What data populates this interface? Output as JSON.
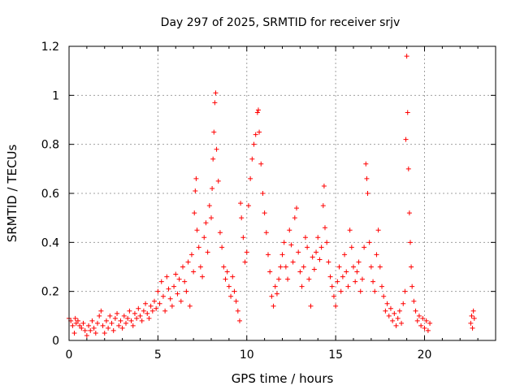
{
  "chart_data": {
    "type": "scatter",
    "title": "Day 297 of 2025, SRMTID for receiver srjv",
    "xlabel": "GPS time / hours",
    "ylabel": "SRMTID / TECUs",
    "xlim": [
      0,
      24
    ],
    "ylim": [
      0,
      1.2
    ],
    "xticks": [
      0,
      5,
      10,
      15,
      20
    ],
    "yticks": [
      0,
      0.2,
      0.4,
      0.6,
      0.8,
      1,
      1.2
    ],
    "xtick_labels": [
      "0",
      "5",
      "10",
      "15",
      "20"
    ],
    "ytick_labels": [
      "0",
      "0.2",
      "0.4",
      "0.6",
      "0.8",
      "1",
      "1.2"
    ],
    "grid": true,
    "marker": "+",
    "color": "#ff0000",
    "series": [
      {
        "name": "SRMTID",
        "points": [
          [
            0.0,
            0.09
          ],
          [
            0.1,
            0.08
          ],
          [
            0.2,
            0.06
          ],
          [
            0.3,
            0.03
          ],
          [
            0.35,
            0.09
          ],
          [
            0.4,
            0.07
          ],
          [
            0.5,
            0.08
          ],
          [
            0.6,
            0.06
          ],
          [
            0.7,
            0.05
          ],
          [
            0.8,
            0.07
          ],
          [
            0.9,
            0.04
          ],
          [
            1.0,
            0.02
          ],
          [
            1.1,
            0.06
          ],
          [
            1.2,
            0.04
          ],
          [
            1.3,
            0.08
          ],
          [
            1.4,
            0.05
          ],
          [
            1.5,
            0.03
          ],
          [
            1.6,
            0.07
          ],
          [
            1.7,
            0.1
          ],
          [
            1.8,
            0.12
          ],
          [
            1.9,
            0.06
          ],
          [
            2.0,
            0.03
          ],
          [
            2.1,
            0.08
          ],
          [
            2.2,
            0.05
          ],
          [
            2.3,
            0.1
          ],
          [
            2.4,
            0.07
          ],
          [
            2.5,
            0.04
          ],
          [
            2.6,
            0.09
          ],
          [
            2.7,
            0.11
          ],
          [
            2.8,
            0.06
          ],
          [
            2.9,
            0.08
          ],
          [
            3.0,
            0.05
          ],
          [
            3.1,
            0.1
          ],
          [
            3.2,
            0.07
          ],
          [
            3.3,
            0.09
          ],
          [
            3.4,
            0.12
          ],
          [
            3.5,
            0.08
          ],
          [
            3.6,
            0.06
          ],
          [
            3.7,
            0.11
          ],
          [
            3.8,
            0.09
          ],
          [
            3.9,
            0.13
          ],
          [
            4.0,
            0.1
          ],
          [
            4.1,
            0.08
          ],
          [
            4.2,
            0.12
          ],
          [
            4.3,
            0.15
          ],
          [
            4.4,
            0.11
          ],
          [
            4.5,
            0.09
          ],
          [
            4.6,
            0.14
          ],
          [
            4.7,
            0.12
          ],
          [
            4.8,
            0.16
          ],
          [
            4.9,
            0.13
          ],
          [
            5.0,
            0.2
          ],
          [
            5.1,
            0.15
          ],
          [
            5.2,
            0.24
          ],
          [
            5.3,
            0.18
          ],
          [
            5.4,
            0.12
          ],
          [
            5.5,
            0.26
          ],
          [
            5.6,
            0.21
          ],
          [
            5.7,
            0.17
          ],
          [
            5.8,
            0.14
          ],
          [
            5.9,
            0.22
          ],
          [
            6.0,
            0.27
          ],
          [
            6.1,
            0.19
          ],
          [
            6.2,
            0.25
          ],
          [
            6.3,
            0.16
          ],
          [
            6.4,
            0.3
          ],
          [
            6.5,
            0.24
          ],
          [
            6.6,
            0.2
          ],
          [
            6.7,
            0.32
          ],
          [
            6.8,
            0.14
          ],
          [
            6.9,
            0.35
          ],
          [
            7.0,
            0.28
          ],
          [
            7.05,
            0.52
          ],
          [
            7.1,
            0.61
          ],
          [
            7.15,
            0.66
          ],
          [
            7.2,
            0.45
          ],
          [
            7.3,
            0.38
          ],
          [
            7.4,
            0.3
          ],
          [
            7.5,
            0.26
          ],
          [
            7.6,
            0.42
          ],
          [
            7.7,
            0.48
          ],
          [
            7.8,
            0.36
          ],
          [
            7.9,
            0.55
          ],
          [
            8.0,
            0.5
          ],
          [
            8.05,
            0.62
          ],
          [
            8.1,
            0.74
          ],
          [
            8.15,
            0.85
          ],
          [
            8.2,
            0.97
          ],
          [
            8.25,
            1.01
          ],
          [
            8.3,
            0.78
          ],
          [
            8.4,
            0.65
          ],
          [
            8.5,
            0.44
          ],
          [
            8.6,
            0.38
          ],
          [
            8.7,
            0.3
          ],
          [
            8.8,
            0.25
          ],
          [
            8.9,
            0.28
          ],
          [
            9.0,
            0.22
          ],
          [
            9.1,
            0.18
          ],
          [
            9.2,
            0.26
          ],
          [
            9.3,
            0.2
          ],
          [
            9.4,
            0.16
          ],
          [
            9.5,
            0.12
          ],
          [
            9.6,
            0.08
          ],
          [
            9.65,
            0.56
          ],
          [
            9.7,
            0.5
          ],
          [
            9.8,
            0.42
          ],
          [
            9.9,
            0.32
          ],
          [
            10.0,
            0.36
          ],
          [
            10.1,
            0.55
          ],
          [
            10.2,
            0.66
          ],
          [
            10.3,
            0.74
          ],
          [
            10.4,
            0.8
          ],
          [
            10.5,
            0.84
          ],
          [
            10.6,
            0.93
          ],
          [
            10.65,
            0.94
          ],
          [
            10.7,
            0.85
          ],
          [
            10.8,
            0.72
          ],
          [
            10.9,
            0.6
          ],
          [
            11.0,
            0.52
          ],
          [
            11.1,
            0.44
          ],
          [
            11.2,
            0.35
          ],
          [
            11.3,
            0.28
          ],
          [
            11.4,
            0.18
          ],
          [
            11.5,
            0.14
          ],
          [
            11.6,
            0.22
          ],
          [
            11.7,
            0.19
          ],
          [
            11.8,
            0.25
          ],
          [
            11.9,
            0.3
          ],
          [
            12.0,
            0.35
          ],
          [
            12.1,
            0.4
          ],
          [
            12.2,
            0.3
          ],
          [
            12.3,
            0.25
          ],
          [
            12.4,
            0.45
          ],
          [
            12.5,
            0.39
          ],
          [
            12.6,
            0.32
          ],
          [
            12.7,
            0.5
          ],
          [
            12.8,
            0.54
          ],
          [
            12.9,
            0.36
          ],
          [
            13.0,
            0.28
          ],
          [
            13.1,
            0.22
          ],
          [
            13.2,
            0.3
          ],
          [
            13.3,
            0.42
          ],
          [
            13.4,
            0.38
          ],
          [
            13.5,
            0.25
          ],
          [
            13.6,
            0.14
          ],
          [
            13.7,
            0.34
          ],
          [
            13.8,
            0.29
          ],
          [
            13.9,
            0.36
          ],
          [
            14.0,
            0.42
          ],
          [
            14.1,
            0.33
          ],
          [
            14.2,
            0.38
          ],
          [
            14.3,
            0.55
          ],
          [
            14.35,
            0.63
          ],
          [
            14.4,
            0.46
          ],
          [
            14.5,
            0.4
          ],
          [
            14.6,
            0.32
          ],
          [
            14.7,
            0.26
          ],
          [
            14.8,
            0.22
          ],
          [
            14.9,
            0.18
          ],
          [
            15.0,
            0.14
          ],
          [
            15.1,
            0.24
          ],
          [
            15.2,
            0.3
          ],
          [
            15.3,
            0.2
          ],
          [
            15.4,
            0.26
          ],
          [
            15.5,
            0.35
          ],
          [
            15.6,
            0.28
          ],
          [
            15.7,
            0.22
          ],
          [
            15.8,
            0.45
          ],
          [
            15.9,
            0.38
          ],
          [
            16.0,
            0.3
          ],
          [
            16.1,
            0.24
          ],
          [
            16.2,
            0.28
          ],
          [
            16.3,
            0.32
          ],
          [
            16.4,
            0.2
          ],
          [
            16.5,
            0.25
          ],
          [
            16.6,
            0.38
          ],
          [
            16.7,
            0.72
          ],
          [
            16.75,
            0.66
          ],
          [
            16.8,
            0.6
          ],
          [
            16.9,
            0.4
          ],
          [
            17.0,
            0.3
          ],
          [
            17.1,
            0.24
          ],
          [
            17.2,
            0.2
          ],
          [
            17.3,
            0.35
          ],
          [
            17.4,
            0.45
          ],
          [
            17.5,
            0.3
          ],
          [
            17.6,
            0.22
          ],
          [
            17.7,
            0.18
          ],
          [
            17.8,
            0.12
          ],
          [
            17.9,
            0.15
          ],
          [
            18.0,
            0.1
          ],
          [
            18.1,
            0.13
          ],
          [
            18.2,
            0.08
          ],
          [
            18.3,
            0.11
          ],
          [
            18.4,
            0.06
          ],
          [
            18.5,
            0.09
          ],
          [
            18.6,
            0.12
          ],
          [
            18.7,
            0.07
          ],
          [
            18.8,
            0.15
          ],
          [
            18.9,
            0.2
          ],
          [
            18.95,
            0.82
          ],
          [
            19.0,
            1.16
          ],
          [
            19.05,
            0.93
          ],
          [
            19.1,
            0.7
          ],
          [
            19.15,
            0.52
          ],
          [
            19.2,
            0.4
          ],
          [
            19.25,
            0.3
          ],
          [
            19.3,
            0.22
          ],
          [
            19.4,
            0.16
          ],
          [
            19.5,
            0.12
          ],
          [
            19.6,
            0.08
          ],
          [
            19.7,
            0.1
          ],
          [
            19.8,
            0.06
          ],
          [
            19.9,
            0.09
          ],
          [
            20.0,
            0.05
          ],
          [
            20.1,
            0.08
          ],
          [
            20.2,
            0.04
          ],
          [
            20.3,
            0.07
          ],
          [
            22.6,
            0.07
          ],
          [
            22.65,
            0.1
          ],
          [
            22.7,
            0.05
          ],
          [
            22.75,
            0.12
          ],
          [
            22.8,
            0.09
          ]
        ]
      }
    ]
  }
}
